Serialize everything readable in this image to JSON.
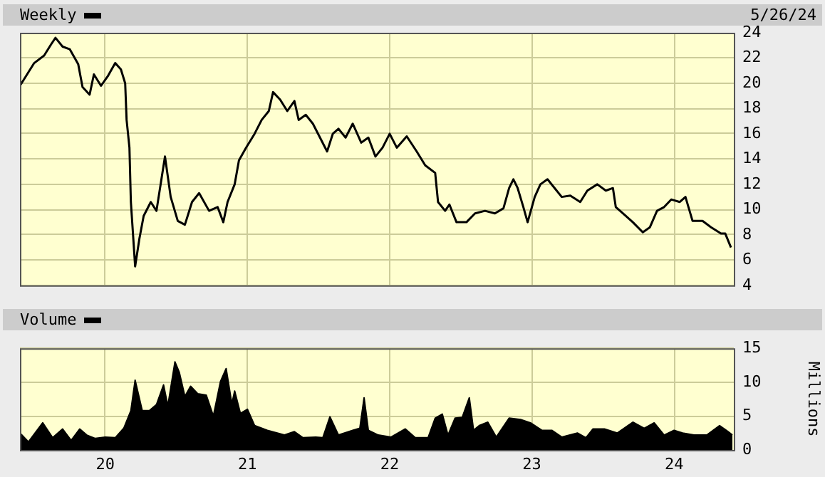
{
  "chart_data": [
    {
      "type": "line",
      "legend": "top left",
      "grid": true,
      "tick_labels": "y",
      "annotations": [
        "5/26/24"
      ],
      "xlim": [
        2019.4,
        2024.42
      ],
      "xticks": [
        {
          "value": 2020,
          "label": null
        },
        {
          "value": 2021,
          "label": null
        },
        {
          "value": 2022,
          "label": null
        },
        {
          "value": 2023,
          "label": null
        },
        {
          "value": 2024,
          "label": null
        }
      ],
      "ylim": [
        4,
        24
      ],
      "yticks": [
        4,
        6,
        8,
        10,
        12,
        14,
        16,
        18,
        20,
        22,
        24
      ],
      "x": [
        2019.4,
        2019.45,
        2019.5,
        2019.57,
        2019.62,
        2019.65,
        2019.7,
        2019.75,
        2019.81,
        2019.84,
        2019.89,
        2019.92,
        2019.97,
        2020.02,
        2020.07,
        2020.11,
        2020.14,
        2020.15,
        2020.17,
        2020.18,
        2020.21,
        2020.24,
        2020.27,
        2020.32,
        2020.36,
        2020.42,
        2020.46,
        2020.51,
        2020.56,
        2020.61,
        2020.66,
        2020.73,
        2020.79,
        2020.83,
        2020.86,
        2020.91,
        2020.94,
        2020.99,
        2021.05,
        2021.1,
        2021.15,
        2021.18,
        2021.23,
        2021.28,
        2021.33,
        2021.36,
        2021.41,
        2021.46,
        2021.51,
        2021.56,
        2021.6,
        2021.64,
        2021.69,
        2021.74,
        2021.8,
        2021.85,
        2021.9,
        2021.95,
        2022.0,
        2022.05,
        2022.12,
        2022.19,
        2022.25,
        2022.32,
        2022.34,
        2022.39,
        2022.42,
        2022.47,
        2022.54,
        2022.6,
        2022.67,
        2022.74,
        2022.8,
        2022.84,
        2022.87,
        2022.9,
        2022.94,
        2022.97,
        2023.02,
        2023.06,
        2023.11,
        2023.16,
        2023.21,
        2023.27,
        2023.34,
        2023.39,
        2023.46,
        2023.52,
        2023.57,
        2023.59,
        2023.64,
        2023.71,
        2023.78,
        2023.83,
        2023.88,
        2023.93,
        2023.98,
        2024.04,
        2024.08,
        2024.13,
        2024.2,
        2024.26,
        2024.33,
        2024.36,
        2024.4
      ],
      "series": [
        {
          "name": "Weekly",
          "color": "#000000",
          "values": [
            19.8,
            20.7,
            21.6,
            22.2,
            23.1,
            23.6,
            22.9,
            22.7,
            21.5,
            19.7,
            19.1,
            20.7,
            19.8,
            20.6,
            21.6,
            21.1,
            20.0,
            17.1,
            14.9,
            10.6,
            5.5,
            7.7,
            9.5,
            10.6,
            9.9,
            14.2,
            11.0,
            9.1,
            8.8,
            10.6,
            11.3,
            9.9,
            10.2,
            9.0,
            10.6,
            12.0,
            13.9,
            14.9,
            16.0,
            17.1,
            17.8,
            19.3,
            18.7,
            17.8,
            18.6,
            17.1,
            17.5,
            16.8,
            15.7,
            14.6,
            16.0,
            16.4,
            15.7,
            16.8,
            15.3,
            15.7,
            14.2,
            14.9,
            16.0,
            14.9,
            15.8,
            14.6,
            13.5,
            12.9,
            10.6,
            9.9,
            10.4,
            9.0,
            9.0,
            9.7,
            9.9,
            9.7,
            10.1,
            11.7,
            12.4,
            11.7,
            10.2,
            9.0,
            11.0,
            12.0,
            12.4,
            11.7,
            11.0,
            11.1,
            10.6,
            11.5,
            12.0,
            11.5,
            11.7,
            10.2,
            9.7,
            9.0,
            8.2,
            8.6,
            9.9,
            10.2,
            10.8,
            10.6,
            11.0,
            9.1,
            9.1,
            8.6,
            8.1,
            8.1,
            7.0
          ]
        }
      ]
    },
    {
      "type": "area",
      "legend": "top left",
      "grid": true,
      "ylabel": "Millions",
      "xlim": [
        2019.4,
        2024.42
      ],
      "xticks": [
        {
          "value": 2020,
          "label": "20"
        },
        {
          "value": 2021,
          "label": "21"
        },
        {
          "value": 2022,
          "label": "22"
        },
        {
          "value": 2023,
          "label": "23"
        },
        {
          "value": 2024,
          "label": "24"
        }
      ],
      "ylim": [
        0,
        15
      ],
      "yticks": [
        0,
        5,
        10,
        15
      ],
      "x": [
        2019.4,
        2019.46,
        2019.56,
        2019.63,
        2019.7,
        2019.76,
        2019.82,
        2019.87,
        2019.93,
        2020.0,
        2020.07,
        2020.13,
        2020.18,
        2020.21,
        2020.26,
        2020.31,
        2020.36,
        2020.41,
        2020.44,
        2020.49,
        2020.52,
        2020.56,
        2020.6,
        2020.65,
        2020.71,
        2020.76,
        2020.81,
        2020.85,
        2020.89,
        2020.91,
        2020.95,
        2021.0,
        2021.05,
        2021.14,
        2021.26,
        2021.33,
        2021.39,
        2021.48,
        2021.53,
        2021.58,
        2021.64,
        2021.74,
        2021.79,
        2021.82,
        2021.85,
        2021.92,
        2022.01,
        2022.11,
        2022.18,
        2022.27,
        2022.32,
        2022.37,
        2022.41,
        2022.46,
        2022.51,
        2022.56,
        2022.59,
        2022.63,
        2022.69,
        2022.75,
        2022.84,
        2022.92,
        2022.99,
        2023.07,
        2023.14,
        2023.21,
        2023.32,
        2023.38,
        2023.43,
        2023.51,
        2023.6,
        2023.71,
        2023.79,
        2023.86,
        2023.93,
        2024.0,
        2024.06,
        2024.14,
        2024.23,
        2024.32,
        2024.38,
        2024.41
      ],
      "series": [
        {
          "name": "Volume",
          "color": "#000000",
          "values": [
            2.5,
            1.2,
            4.0,
            1.8,
            3.1,
            1.4,
            3.1,
            2.2,
            1.7,
            1.9,
            1.8,
            3.2,
            5.8,
            10.3,
            5.8,
            5.8,
            6.7,
            9.6,
            6.5,
            13.0,
            11.5,
            7.9,
            9.4,
            8.3,
            8.1,
            5.0,
            10.1,
            12.0,
            6.8,
            8.7,
            5.4,
            6.0,
            3.6,
            2.9,
            2.2,
            2.7,
            1.8,
            1.9,
            1.8,
            4.9,
            2.2,
            2.9,
            3.2,
            7.7,
            2.9,
            2.2,
            1.9,
            3.1,
            1.8,
            1.8,
            4.7,
            5.3,
            2.2,
            4.7,
            4.8,
            7.7,
            2.9,
            3.6,
            4.1,
            1.9,
            4.7,
            4.5,
            4.0,
            2.9,
            2.9,
            1.9,
            2.5,
            1.8,
            3.1,
            3.1,
            2.5,
            4.1,
            3.2,
            4.0,
            2.2,
            2.9,
            2.5,
            2.2,
            2.2,
            3.6,
            2.7,
            2.2
          ]
        }
      ]
    }
  ]
}
